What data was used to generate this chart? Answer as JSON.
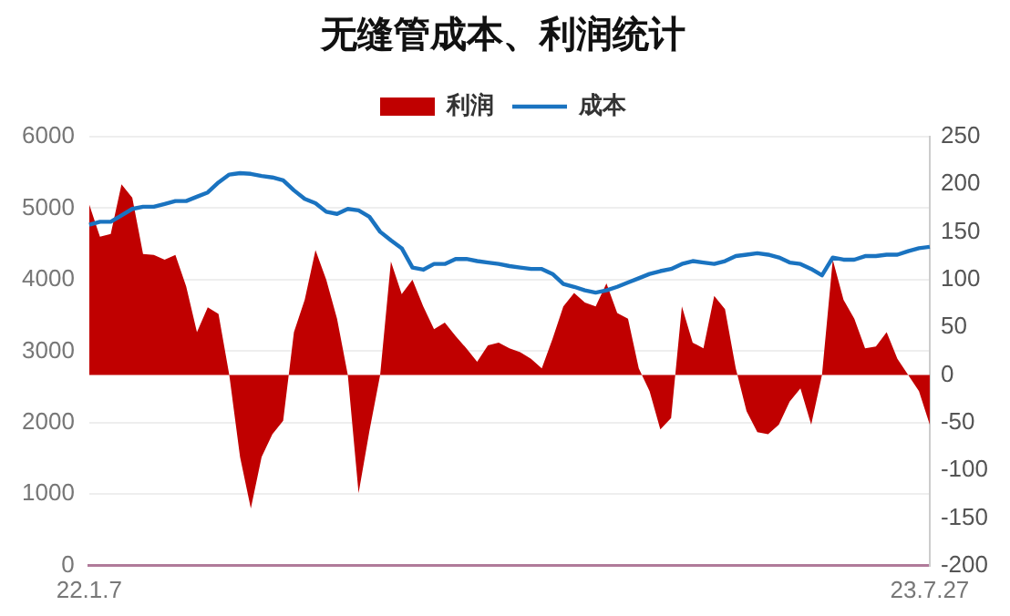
{
  "chart_data": {
    "type": "line",
    "title": "无缝管成本、利润统计",
    "categories": [
      "22.1.7",
      null,
      null,
      null,
      null,
      null,
      null,
      null,
      null,
      null,
      null,
      null,
      null,
      null,
      null,
      null,
      null,
      null,
      null,
      null,
      null,
      null,
      null,
      null,
      null,
      null,
      null,
      null,
      null,
      null,
      null,
      null,
      null,
      null,
      null,
      null,
      null,
      null,
      null,
      null,
      null,
      null,
      null,
      null,
      null,
      null,
      null,
      null,
      null,
      null,
      null,
      null,
      null,
      null,
      null,
      null,
      null,
      null,
      null,
      null,
      null,
      null,
      null,
      null,
      null,
      null,
      null,
      null,
      null,
      null,
      null,
      null,
      null,
      null,
      null,
      null,
      null,
      null,
      "23.7.27"
    ],
    "series": [
      {
        "name": "利润",
        "type": "area",
        "axis": "y2",
        "color": "#c00000",
        "values": [
          179,
          145,
          148,
          200,
          186,
          127,
          126,
          121,
          126,
          93,
          45,
          71,
          64,
          0,
          -86,
          -140,
          -86,
          -62,
          -48,
          45,
          79,
          131,
          100,
          59,
          0,
          -124,
          -59,
          0,
          119,
          85,
          100,
          72,
          48,
          55,
          41,
          28,
          14,
          31,
          34,
          28,
          24,
          17,
          7,
          38,
          72,
          86,
          76,
          72,
          96,
          65,
          59,
          7,
          -17,
          -57,
          -45,
          72,
          34,
          28,
          83,
          69,
          7,
          -38,
          -60,
          -62,
          -52,
          -28,
          -14,
          -52,
          0,
          121,
          79,
          59,
          28,
          30,
          45,
          17,
          0,
          -17,
          -52
        ]
      },
      {
        "name": "成本",
        "type": "line",
        "color": "#1a73c0",
        "values": [
          4770,
          4810,
          4810,
          4900,
          4990,
          5020,
          5020,
          5060,
          5100,
          5100,
          5160,
          5220,
          5360,
          5470,
          5490,
          5480,
          5450,
          5430,
          5390,
          5250,
          5130,
          5070,
          4950,
          4920,
          4990,
          4970,
          4880,
          4670,
          4550,
          4440,
          4170,
          4140,
          4220,
          4220,
          4290,
          4290,
          4260,
          4240,
          4220,
          4190,
          4170,
          4150,
          4150,
          4080,
          3940,
          3900,
          3850,
          3820,
          3850,
          3900,
          3960,
          4020,
          4080,
          4120,
          4150,
          4220,
          4260,
          4240,
          4220,
          4260,
          4330,
          4350,
          4370,
          4350,
          4310,
          4240,
          4220,
          4150,
          4060,
          4310,
          4280,
          4280,
          4330,
          4330,
          4350,
          4350,
          4400,
          4440,
          4460
        ]
      }
    ],
    "ylim": [
      0,
      6000
    ],
    "yticks": [
      0,
      1000,
      2000,
      3000,
      4000,
      5000,
      6000
    ],
    "y2lim": [
      -200,
      250
    ],
    "y2ticks": [
      -200,
      -150,
      -100,
      -50,
      0,
      50,
      100,
      150,
      200,
      250
    ],
    "grid": "y",
    "legend": "top"
  }
}
